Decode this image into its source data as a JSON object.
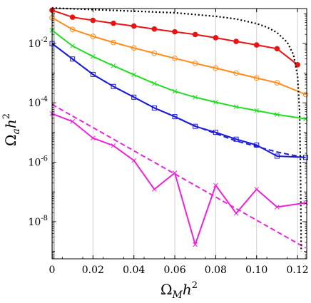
{
  "chart_data": {
    "type": "line",
    "title": "",
    "xlabel": "Ω_M h^2",
    "ylabel": "Ω_a h^2",
    "xlabel_parts": {
      "base": "Ω",
      "sub": "M",
      "mid": "h",
      "sup": "2"
    },
    "ylabel_parts": {
      "base": "Ω",
      "sub": "a",
      "mid": "h",
      "sup": "2"
    },
    "xlim": [
      0,
      0.1245
    ],
    "ylim_log10": [
      -9.25,
      -0.83
    ],
    "yscale": "log",
    "x_ticks": [
      {
        "value": 0,
        "label": "0"
      },
      {
        "value": 0.02,
        "label": "0.02"
      },
      {
        "value": 0.04,
        "label": "0.04"
      },
      {
        "value": 0.06,
        "label": "0.06"
      },
      {
        "value": 0.08,
        "label": "0.08"
      },
      {
        "value": 0.1,
        "label": "0.10"
      },
      {
        "value": 0.12,
        "label": "0.12"
      }
    ],
    "y_ticks": [
      {
        "value": 0.01,
        "base": "10",
        "exp": "-2"
      },
      {
        "value": 0.0001,
        "base": "10",
        "exp": "-4"
      },
      {
        "value": 1e-06,
        "base": "10",
        "exp": "-6"
      },
      {
        "value": 1e-08,
        "base": "10",
        "exp": "-8"
      }
    ],
    "grid": "vertical",
    "shaded_band": [
      0,
      0.0014
    ],
    "colors": {
      "red": "#ee1111",
      "orange": "#ff8c1a",
      "green": "#22dd22",
      "blue": "#1a1adb",
      "magenta": "#ee22dd",
      "black": "#000000",
      "band": "#c8c8c8",
      "grid": "#d0d0d0"
    },
    "series": [
      {
        "color": "red",
        "style": "solid",
        "marker": "filled-circle",
        "x": [
          0,
          0.01,
          0.02,
          0.03,
          0.04,
          0.05,
          0.06,
          0.07,
          0.08,
          0.09,
          0.1,
          0.11,
          0.12
        ],
        "y": [
          0.13,
          0.0757,
          0.0594,
          0.0471,
          0.0381,
          0.0303,
          0.0244,
          0.0198,
          0.0154,
          0.0116,
          0.00882,
          0.0066,
          0.0019
        ]
      },
      {
        "color": "orange",
        "style": "solid",
        "marker": "open-circle",
        "x": [
          0,
          0.01,
          0.02,
          0.03,
          0.04,
          0.05,
          0.06,
          0.07,
          0.08,
          0.09,
          0.1,
          0.11,
          0.124
        ],
        "y": [
          0.073,
          0.0295,
          0.0172,
          0.0107,
          0.00698,
          0.00465,
          0.00313,
          0.00212,
          0.00147,
          0.000996,
          0.00068,
          0.00047,
          0.00019
        ]
      },
      {
        "color": "green",
        "style": "solid",
        "marker": "x",
        "x": [
          0,
          0.01,
          0.02,
          0.03,
          0.04,
          0.05,
          0.06,
          0.07,
          0.08,
          0.09,
          0.1,
          0.11,
          0.124
        ],
        "y": [
          0.0276,
          0.00816,
          0.00362,
          0.00176,
          0.000878,
          0.000445,
          0.000244,
          0.000153,
          0.000104,
          7.32e-05,
          5.46e-05,
          4.03e-05,
          2.86e-05
        ]
      },
      {
        "color": "blue",
        "style": "solid",
        "marker": "open-square",
        "x": [
          0,
          0.01,
          0.02,
          0.03,
          0.04,
          0.05,
          0.06,
          0.07,
          0.08,
          0.09,
          0.1,
          0.11,
          0.124
        ],
        "y": [
          0.00982,
          0.00297,
          0.000898,
          0.000354,
          0.000154,
          6.69e-05,
          3.41e-05,
          1.61e-05,
          1.01e-05,
          5.95e-06,
          3.77e-06,
          1.6e-06,
          1.45e-06
        ]
      },
      {
        "color": "blue",
        "style": "dashed",
        "marker": "none",
        "x": [
          0,
          0.01,
          0.02,
          0.03,
          0.04,
          0.05,
          0.06,
          0.07,
          0.08,
          0.09,
          0.1,
          0.11,
          0.124
        ],
        "y": [
          0.00982,
          0.00297,
          0.000898,
          0.000354,
          0.000154,
          6.69e-05,
          3.41e-05,
          1.66e-05,
          9.2e-06,
          5.19e-06,
          3.37e-06,
          2.2e-06,
          1.4e-06
        ]
      },
      {
        "color": "magenta",
        "style": "solid",
        "marker": "x",
        "x": [
          0,
          0.01,
          0.02,
          0.03,
          0.04,
          0.05,
          0.06,
          0.07,
          0.08,
          0.09,
          0.1,
          0.11,
          0.124
        ],
        "y": [
          4.3e-05,
          2.35e-05,
          6.5e-06,
          3.6e-06,
          1.14e-06,
          1.23e-07,
          4.37e-07,
          1.7e-09,
          1.67e-07,
          1.91e-08,
          1.23e-07,
          3.1e-08,
          4.3e-08
        ]
      },
      {
        "color": "magenta",
        "style": "dashed",
        "marker": "none",
        "x": [
          0,
          0.124
        ],
        "y": [
          8.8e-05,
          1.3e-09
        ]
      },
      {
        "color": "black",
        "style": "dotted",
        "marker": "none",
        "x": [
          0,
          0.06,
          0.08,
          0.09,
          0.1,
          0.105,
          0.11,
          0.115,
          0.118,
          0.12,
          0.121,
          0.1215,
          0.1218
        ],
        "y": [
          0.155,
          0.107,
          0.081,
          0.066,
          0.046,
          0.035,
          0.023,
          0.0107,
          0.0042,
          0.00084,
          5e-05,
          3e-07,
          1e-09
        ]
      }
    ]
  }
}
